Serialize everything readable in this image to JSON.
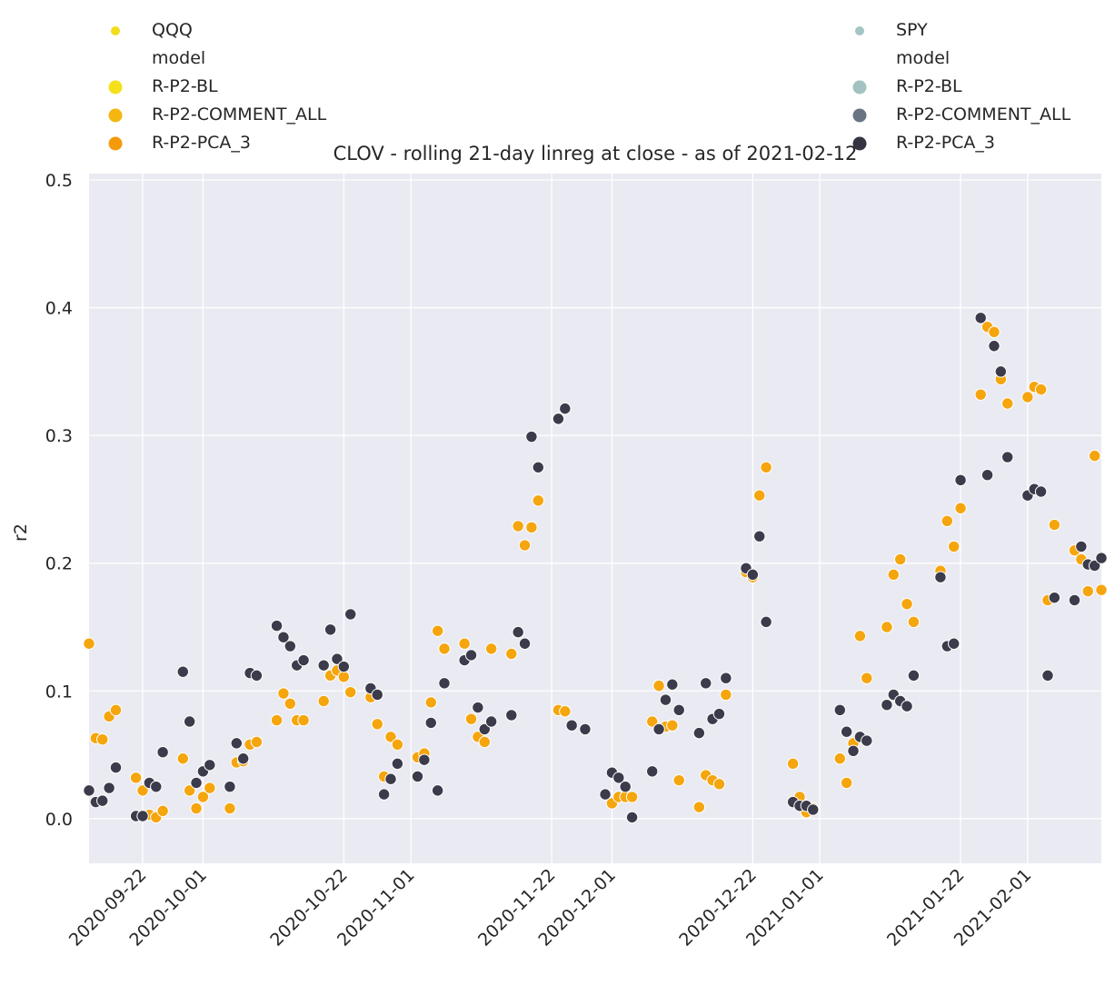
{
  "chart_data": {
    "type": "scatter",
    "title": "CLOV - rolling 21-day linreg at close - as of 2021-02-12",
    "xlabel": "",
    "ylabel": "r2",
    "xlim": [
      "2020-09-14",
      "2021-02-12"
    ],
    "ylim": [
      -0.035,
      0.505
    ],
    "x_ticks": [
      "2020-09-22",
      "2020-10-01",
      "2020-10-22",
      "2020-11-01",
      "2020-11-22",
      "2020-12-01",
      "2020-12-22",
      "2021-01-01",
      "2021-01-22",
      "2021-02-01"
    ],
    "y_ticks": [
      "0.0",
      "0.1",
      "0.2",
      "0.3",
      "0.4",
      "0.5"
    ],
    "grid": true,
    "background": "#eaeaf2",
    "legends": [
      {
        "hue_title": "QQQ",
        "size_title": "model",
        "hue_color": "#f3dc1c",
        "entries": [
          {
            "name": "R-P2-BL",
            "color": "#f6e01c"
          },
          {
            "name": "R-P2-COMMENT_ALL",
            "color": "#f4b60f"
          },
          {
            "name": "R-P2-PCA_3",
            "color": "#f59a0b"
          }
        ],
        "placement": "top-left"
      },
      {
        "hue_title": "SPY",
        "size_title": "model",
        "hue_color": "#a5c4c4",
        "entries": [
          {
            "name": "R-P2-BL",
            "color": "#a3c2c1"
          },
          {
            "name": "R-P2-COMMENT_ALL",
            "color": "#6a7383"
          },
          {
            "name": "R-P2-PCA_3",
            "color": "#343443"
          }
        ],
        "placement": "top-right"
      }
    ],
    "series": [
      {
        "name": "QQQ",
        "color": "#f5a50d",
        "points": [
          [
            "2020-09-14",
            0.137
          ],
          [
            "2020-09-15",
            0.063
          ],
          [
            "2020-09-16",
            0.062
          ],
          [
            "2020-09-17",
            0.08
          ],
          [
            "2020-09-18",
            0.085
          ],
          [
            "2020-09-21",
            0.032
          ],
          [
            "2020-09-22",
            0.022
          ],
          [
            "2020-09-23",
            0.003
          ],
          [
            "2020-09-24",
            0.001
          ],
          [
            "2020-09-25",
            0.006
          ],
          [
            "2020-09-28",
            0.047
          ],
          [
            "2020-09-29",
            0.022
          ],
          [
            "2020-09-30",
            0.008
          ],
          [
            "2020-10-01",
            0.017
          ],
          [
            "2020-10-02",
            0.024
          ],
          [
            "2020-10-05",
            0.008
          ],
          [
            "2020-10-06",
            0.044
          ],
          [
            "2020-10-07",
            0.045
          ],
          [
            "2020-10-08",
            0.058
          ],
          [
            "2020-10-09",
            0.06
          ],
          [
            "2020-10-12",
            0.077
          ],
          [
            "2020-10-13",
            0.098
          ],
          [
            "2020-10-14",
            0.09
          ],
          [
            "2020-10-15",
            0.077
          ],
          [
            "2020-10-16",
            0.077
          ],
          [
            "2020-10-19",
            0.092
          ],
          [
            "2020-10-20",
            0.112
          ],
          [
            "2020-10-21",
            0.116
          ],
          [
            "2020-10-22",
            0.111
          ],
          [
            "2020-10-23",
            0.099
          ],
          [
            "2020-10-26",
            0.095
          ],
          [
            "2020-10-27",
            0.074
          ],
          [
            "2020-10-28",
            0.033
          ],
          [
            "2020-10-29",
            0.064
          ],
          [
            "2020-10-30",
            0.058
          ],
          [
            "2020-11-02",
            0.048
          ],
          [
            "2020-11-03",
            0.051
          ],
          [
            "2020-11-04",
            0.091
          ],
          [
            "2020-11-05",
            0.147
          ],
          [
            "2020-11-06",
            0.133
          ],
          [
            "2020-11-09",
            0.137
          ],
          [
            "2020-11-10",
            0.078
          ],
          [
            "2020-11-11",
            0.064
          ],
          [
            "2020-11-12",
            0.06
          ],
          [
            "2020-11-13",
            0.133
          ],
          [
            "2020-11-16",
            0.129
          ],
          [
            "2020-11-17",
            0.229
          ],
          [
            "2020-11-18",
            0.214
          ],
          [
            "2020-11-19",
            0.228
          ],
          [
            "2020-11-20",
            0.249
          ],
          [
            "2020-11-23",
            0.085
          ],
          [
            "2020-11-24",
            0.084
          ],
          [
            "2020-11-30",
            0.019
          ],
          [
            "2020-12-01",
            0.012
          ],
          [
            "2020-12-02",
            0.017
          ],
          [
            "2020-12-03",
            0.017
          ],
          [
            "2020-12-04",
            0.017
          ],
          [
            "2020-12-07",
            0.076
          ],
          [
            "2020-12-08",
            0.104
          ],
          [
            "2020-12-09",
            0.072
          ],
          [
            "2020-12-10",
            0.073
          ],
          [
            "2020-12-11",
            0.03
          ],
          [
            "2020-12-14",
            0.009
          ],
          [
            "2020-12-15",
            0.034
          ],
          [
            "2020-12-16",
            0.03
          ],
          [
            "2020-12-17",
            0.027
          ],
          [
            "2020-12-18",
            0.097
          ],
          [
            "2020-12-21",
            0.193
          ],
          [
            "2020-12-22",
            0.189
          ],
          [
            "2020-12-23",
            0.253
          ],
          [
            "2020-12-24",
            0.275
          ],
          [
            "2020-12-28",
            0.043
          ],
          [
            "2020-12-29",
            0.017
          ],
          [
            "2020-12-30",
            0.005
          ],
          [
            "2020-12-31",
            0.008
          ],
          [
            "2021-01-04",
            0.047
          ],
          [
            "2021-01-05",
            0.028
          ],
          [
            "2021-01-06",
            0.059
          ],
          [
            "2021-01-07",
            0.143
          ],
          [
            "2021-01-08",
            0.11
          ],
          [
            "2021-01-11",
            0.15
          ],
          [
            "2021-01-12",
            0.191
          ],
          [
            "2021-01-13",
            0.203
          ],
          [
            "2021-01-14",
            0.168
          ],
          [
            "2021-01-15",
            0.154
          ],
          [
            "2021-01-19",
            0.194
          ],
          [
            "2021-01-20",
            0.233
          ],
          [
            "2021-01-21",
            0.213
          ],
          [
            "2021-01-22",
            0.243
          ],
          [
            "2021-01-25",
            0.332
          ],
          [
            "2021-01-26",
            0.385
          ],
          [
            "2021-01-27",
            0.381
          ],
          [
            "2021-01-28",
            0.344
          ],
          [
            "2021-01-29",
            0.325
          ],
          [
            "2021-02-01",
            0.33
          ],
          [
            "2021-02-02",
            0.338
          ],
          [
            "2021-02-03",
            0.336
          ],
          [
            "2021-02-04",
            0.171
          ],
          [
            "2021-02-05",
            0.23
          ],
          [
            "2021-02-08",
            0.21
          ],
          [
            "2021-02-09",
            0.203
          ],
          [
            "2021-02-10",
            0.178
          ],
          [
            "2021-02-11",
            0.284
          ],
          [
            "2021-02-12",
            0.179
          ]
        ]
      },
      {
        "name": "SPY",
        "color": "#3b3b4b",
        "points": [
          [
            "2020-09-14",
            0.022
          ],
          [
            "2020-09-15",
            0.013
          ],
          [
            "2020-09-16",
            0.014
          ],
          [
            "2020-09-17",
            0.024
          ],
          [
            "2020-09-18",
            0.04
          ],
          [
            "2020-09-21",
            0.002
          ],
          [
            "2020-09-22",
            0.002
          ],
          [
            "2020-09-23",
            0.028
          ],
          [
            "2020-09-24",
            0.025
          ],
          [
            "2020-09-25",
            0.052
          ],
          [
            "2020-09-28",
            0.115
          ],
          [
            "2020-09-29",
            0.076
          ],
          [
            "2020-09-30",
            0.028
          ],
          [
            "2020-10-01",
            0.037
          ],
          [
            "2020-10-02",
            0.042
          ],
          [
            "2020-10-05",
            0.025
          ],
          [
            "2020-10-06",
            0.059
          ],
          [
            "2020-10-07",
            0.047
          ],
          [
            "2020-10-08",
            0.114
          ],
          [
            "2020-10-09",
            0.112
          ],
          [
            "2020-10-12",
            0.151
          ],
          [
            "2020-10-13",
            0.142
          ],
          [
            "2020-10-14",
            0.135
          ],
          [
            "2020-10-15",
            0.12
          ],
          [
            "2020-10-16",
            0.124
          ],
          [
            "2020-10-19",
            0.12
          ],
          [
            "2020-10-20",
            0.148
          ],
          [
            "2020-10-21",
            0.125
          ],
          [
            "2020-10-22",
            0.119
          ],
          [
            "2020-10-23",
            0.16
          ],
          [
            "2020-10-26",
            0.102
          ],
          [
            "2020-10-27",
            0.097
          ],
          [
            "2020-10-28",
            0.019
          ],
          [
            "2020-10-29",
            0.031
          ],
          [
            "2020-10-30",
            0.043
          ],
          [
            "2020-11-02",
            0.033
          ],
          [
            "2020-11-03",
            0.046
          ],
          [
            "2020-11-04",
            0.075
          ],
          [
            "2020-11-05",
            0.022
          ],
          [
            "2020-11-06",
            0.106
          ],
          [
            "2020-11-09",
            0.124
          ],
          [
            "2020-11-10",
            0.128
          ],
          [
            "2020-11-11",
            0.087
          ],
          [
            "2020-11-12",
            0.07
          ],
          [
            "2020-11-13",
            0.076
          ],
          [
            "2020-11-16",
            0.081
          ],
          [
            "2020-11-17",
            0.146
          ],
          [
            "2020-11-18",
            0.137
          ],
          [
            "2020-11-19",
            0.299
          ],
          [
            "2020-11-20",
            0.275
          ],
          [
            "2020-11-23",
            0.313
          ],
          [
            "2020-11-24",
            0.321
          ],
          [
            "2020-11-25",
            0.073
          ],
          [
            "2020-11-27",
            0.07
          ],
          [
            "2020-11-30",
            0.019
          ],
          [
            "2020-12-01",
            0.036
          ],
          [
            "2020-12-02",
            0.032
          ],
          [
            "2020-12-03",
            0.025
          ],
          [
            "2020-12-04",
            0.001
          ],
          [
            "2020-12-07",
            0.037
          ],
          [
            "2020-12-08",
            0.07
          ],
          [
            "2020-12-09",
            0.093
          ],
          [
            "2020-12-10",
            0.105
          ],
          [
            "2020-12-11",
            0.085
          ],
          [
            "2020-12-14",
            0.067
          ],
          [
            "2020-12-15",
            0.106
          ],
          [
            "2020-12-16",
            0.078
          ],
          [
            "2020-12-17",
            0.082
          ],
          [
            "2020-12-18",
            0.11
          ],
          [
            "2020-12-21",
            0.196
          ],
          [
            "2020-12-22",
            0.191
          ],
          [
            "2020-12-23",
            0.221
          ],
          [
            "2020-12-24",
            0.154
          ],
          [
            "2020-12-28",
            0.013
          ],
          [
            "2020-12-29",
            0.01
          ],
          [
            "2020-12-30",
            0.01
          ],
          [
            "2020-12-31",
            0.007
          ],
          [
            "2021-01-04",
            0.085
          ],
          [
            "2021-01-05",
            0.068
          ],
          [
            "2021-01-06",
            0.053
          ],
          [
            "2021-01-07",
            0.064
          ],
          [
            "2021-01-08",
            0.061
          ],
          [
            "2021-01-11",
            0.089
          ],
          [
            "2021-01-12",
            0.097
          ],
          [
            "2021-01-13",
            0.092
          ],
          [
            "2021-01-14",
            0.088
          ],
          [
            "2021-01-15",
            0.112
          ],
          [
            "2021-01-19",
            0.189
          ],
          [
            "2021-01-20",
            0.135
          ],
          [
            "2021-01-21",
            0.137
          ],
          [
            "2021-01-22",
            0.265
          ],
          [
            "2021-01-25",
            0.392
          ],
          [
            "2021-01-26",
            0.269
          ],
          [
            "2021-01-27",
            0.37
          ],
          [
            "2021-01-28",
            0.35
          ],
          [
            "2021-01-29",
            0.283
          ],
          [
            "2021-02-01",
            0.253
          ],
          [
            "2021-02-02",
            0.258
          ],
          [
            "2021-02-03",
            0.256
          ],
          [
            "2021-02-04",
            0.112
          ],
          [
            "2021-02-05",
            0.173
          ],
          [
            "2021-02-08",
            0.171
          ],
          [
            "2021-02-09",
            0.213
          ],
          [
            "2021-02-10",
            0.199
          ],
          [
            "2021-02-11",
            0.198
          ],
          [
            "2021-02-12",
            0.204
          ]
        ]
      }
    ]
  }
}
